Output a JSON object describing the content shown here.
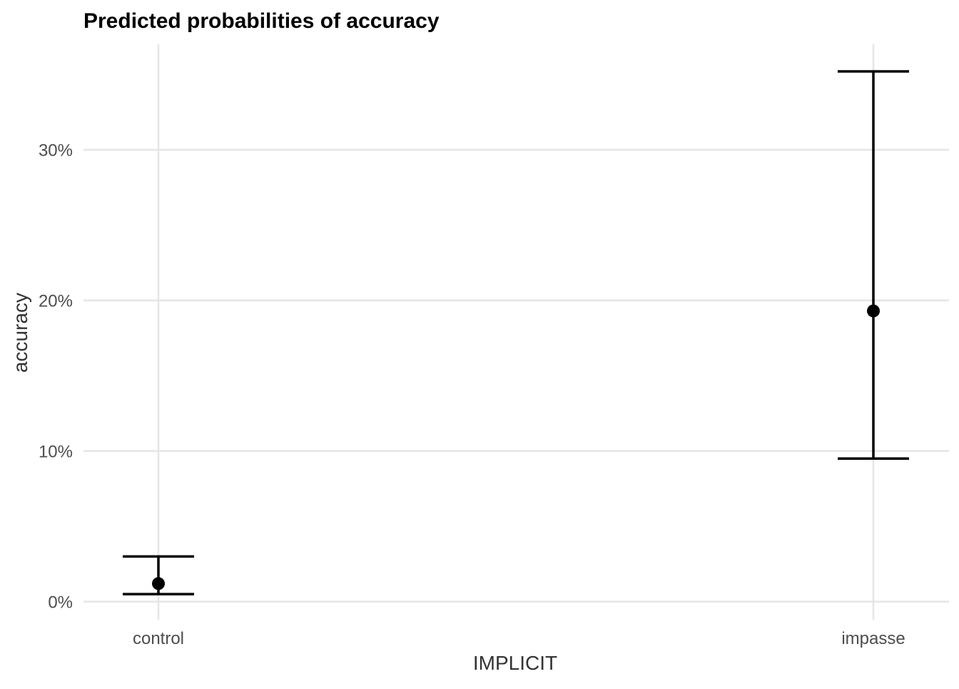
{
  "chart_data": {
    "type": "errorbar",
    "title": "Predicted probabilities of accuracy",
    "xlabel": "IMPLICIT",
    "ylabel": "accuracy",
    "categories": [
      "control",
      "impasse"
    ],
    "estimates": [
      0.012,
      0.193
    ],
    "ci_low": [
      0.005,
      0.095
    ],
    "ci_high": [
      0.03,
      0.352
    ],
    "ylim": [
      -0.012,
      0.37
    ],
    "yticks": [
      0,
      0.1,
      0.2,
      0.3
    ],
    "ytick_labels": [
      "0%",
      "10%",
      "20%",
      "30%"
    ],
    "grid": true,
    "point_color": "#000000",
    "grid_color": "#e5e5e5"
  }
}
